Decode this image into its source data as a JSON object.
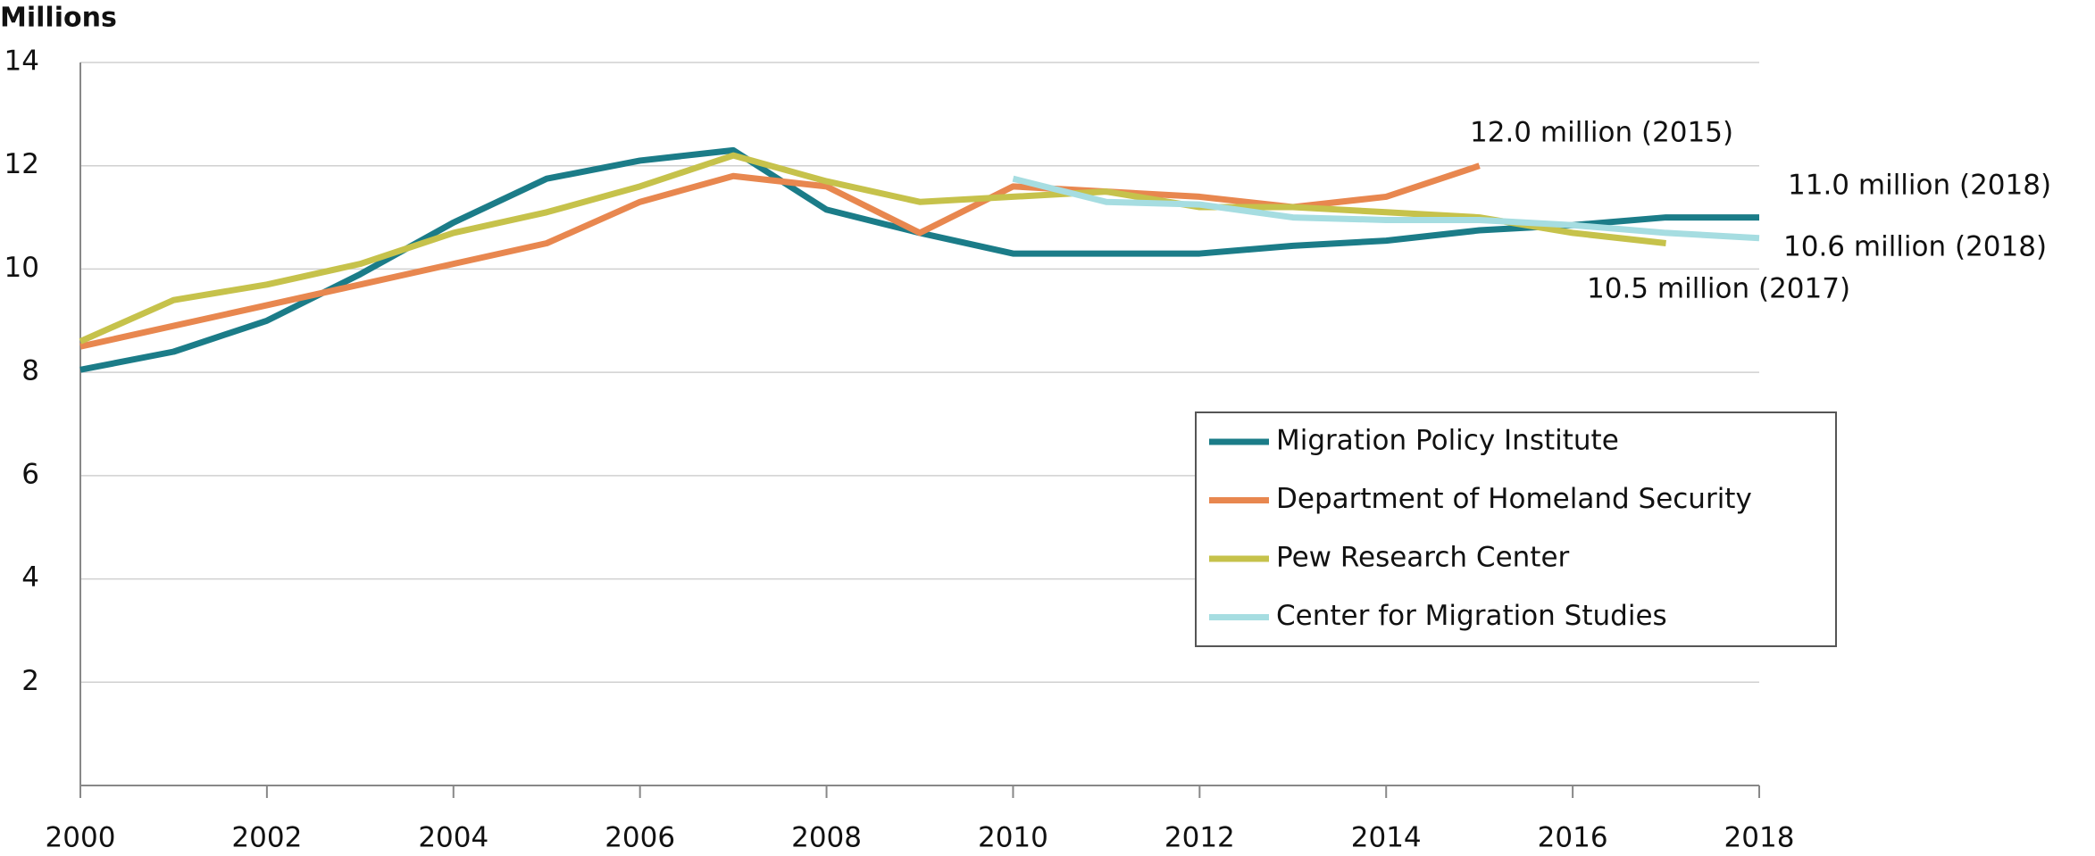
{
  "chart_data": {
    "type": "line",
    "title": "Millions",
    "x": [
      2000,
      2001,
      2002,
      2003,
      2004,
      2005,
      2006,
      2007,
      2008,
      2009,
      2010,
      2011,
      2012,
      2013,
      2014,
      2015,
      2016,
      2017,
      2018
    ],
    "series": [
      {
        "name": "Migration Policy Institute",
        "color": "#1b7c88",
        "values": [
          8.05,
          8.4,
          9.0,
          9.9,
          10.9,
          11.75,
          12.1,
          12.3,
          11.15,
          10.7,
          10.3,
          10.3,
          10.3,
          10.45,
          10.55,
          10.75,
          10.85,
          11.0,
          11.0
        ]
      },
      {
        "name": "Department of Homeland Security",
        "color": "#e8874f",
        "values": [
          8.5,
          8.9,
          9.3,
          9.7,
          10.1,
          10.5,
          11.3,
          11.8,
          11.6,
          10.7,
          11.6,
          11.5,
          11.4,
          11.2,
          11.4,
          12.0,
          null,
          null,
          null
        ]
      },
      {
        "name": "Pew Research Center",
        "color": "#c6c24b",
        "values": [
          8.6,
          9.4,
          9.7,
          10.1,
          10.7,
          11.1,
          11.6,
          12.2,
          11.7,
          11.3,
          11.4,
          11.5,
          11.2,
          11.2,
          11.1,
          11.0,
          10.7,
          10.5,
          null
        ]
      },
      {
        "name": "Center for Migration Studies",
        "color": "#a6dde1",
        "values": [
          null,
          null,
          null,
          null,
          null,
          null,
          null,
          null,
          null,
          null,
          11.75,
          11.3,
          11.25,
          11.0,
          10.95,
          10.95,
          10.85,
          10.7,
          10.6
        ]
      }
    ],
    "annotations": [
      "12.0 million (2015)",
      "11.0 million (2018)",
      "10.6 million (2018)",
      "10.5 million (2017)"
    ],
    "xlim": [
      2000,
      2018
    ],
    "xticks": [
      2000,
      2002,
      2004,
      2006,
      2008,
      2010,
      2012,
      2014,
      2016,
      2018
    ],
    "ylim": [
      0,
      14
    ],
    "yticks": [
      2,
      4,
      6,
      8,
      10,
      12,
      14
    ],
    "grid": true,
    "legend": "lower right"
  }
}
